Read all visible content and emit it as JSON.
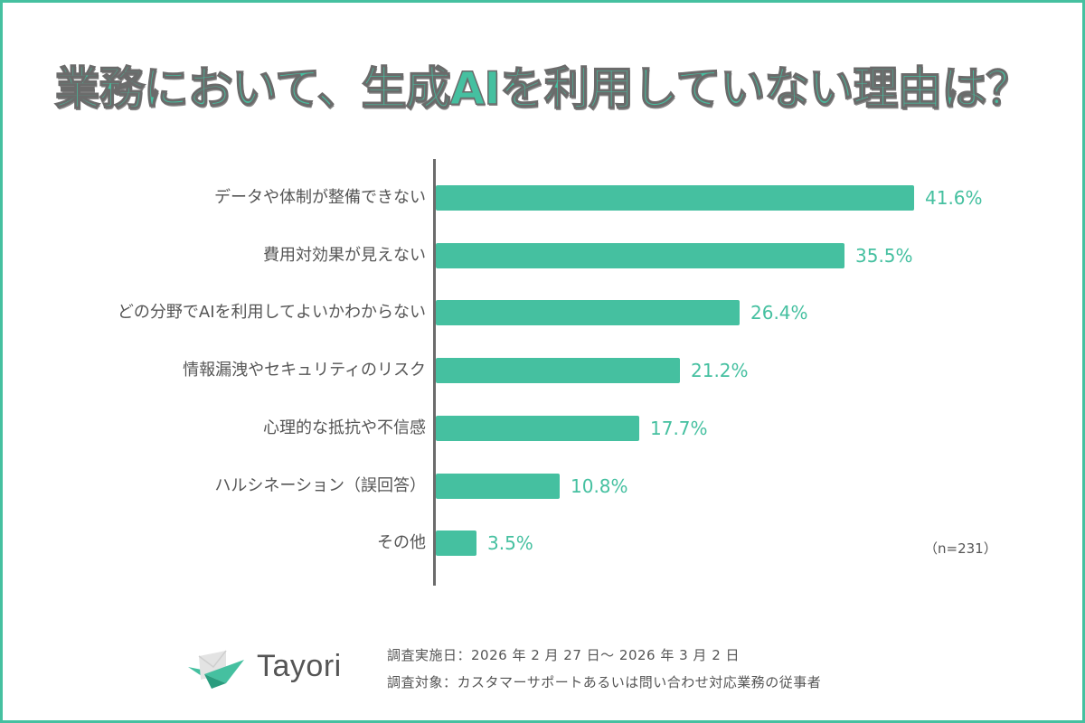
{
  "title": "業務において、生成AIを利用していない理由は？",
  "chart_data": {
    "type": "bar",
    "orientation": "horizontal",
    "title": "業務において、生成AIを利用していない理由は？",
    "categories": [
      "データや体制が整備できない",
      "費用対効果が見えない",
      "どの分野でAIを利用してよいかわからない",
      "情報漏洩やセキュリティのリスク",
      "心理的な抵抗や不信感",
      "ハルシネーション（誤回答）",
      "その他"
    ],
    "values": [
      41.6,
      35.5,
      26.4,
      21.2,
      17.7,
      10.8,
      3.5
    ],
    "value_labels": [
      "41.6%",
      "35.5%",
      "26.4%",
      "21.2%",
      "17.7%",
      "10.8%",
      "3.5%"
    ],
    "unit": "%",
    "xlabel": "",
    "ylabel": "",
    "grid": false,
    "bar_color": "#45c0a0",
    "annotation": "（n=231）"
  },
  "sample_size": "（n=231）",
  "footer": {
    "logo_text": "Tayori",
    "survey_period": "調査実施日：2026 年 2 月 27 日～ 2026 年 3 月 2 日",
    "survey_target": "調査対象：カスタマーサポートあるいは問い合わせ対応業務の従事者"
  },
  "colors": {
    "accent": "#45c0a0",
    "text": "#555555",
    "axis": "#6b6b6b"
  }
}
